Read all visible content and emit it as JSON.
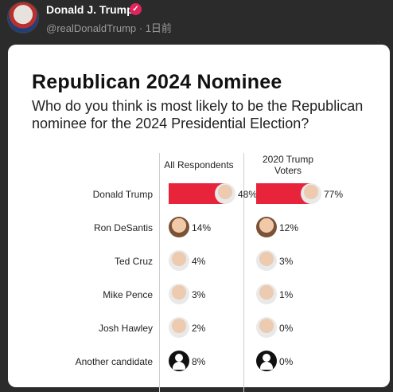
{
  "post": {
    "author": "Donald J. Trump",
    "handle": "@realDonaldTrump · 1日前",
    "verified_icon": "verified-badge-icon"
  },
  "chart_data": {
    "type": "bar",
    "title": "Republican 2024 Nominee",
    "subtitle": "Who do you think is most likely to be the Republican nominee for the 2024 Presidential Election?",
    "categories": [
      "Donald Trump",
      "Ron DeSantis",
      "Ted Cruz",
      "Mike Pence",
      "Josh Hawley",
      "Another candidate"
    ],
    "series": [
      {
        "name": "All Respondents",
        "values": [
          48,
          14,
          4,
          3,
          2,
          8
        ]
      },
      {
        "name": "2020 Trump Voters",
        "values": [
          77,
          12,
          3,
          1,
          0,
          0
        ]
      }
    ],
    "value_labels": [
      [
        "48%",
        "14%",
        "4%",
        "3%",
        "2%",
        "8%"
      ],
      [
        "77%",
        "12%",
        "3%",
        "1%",
        "0%",
        "0%"
      ]
    ],
    "bar_color": "#e8243b",
    "ylim": [
      0,
      100
    ]
  }
}
